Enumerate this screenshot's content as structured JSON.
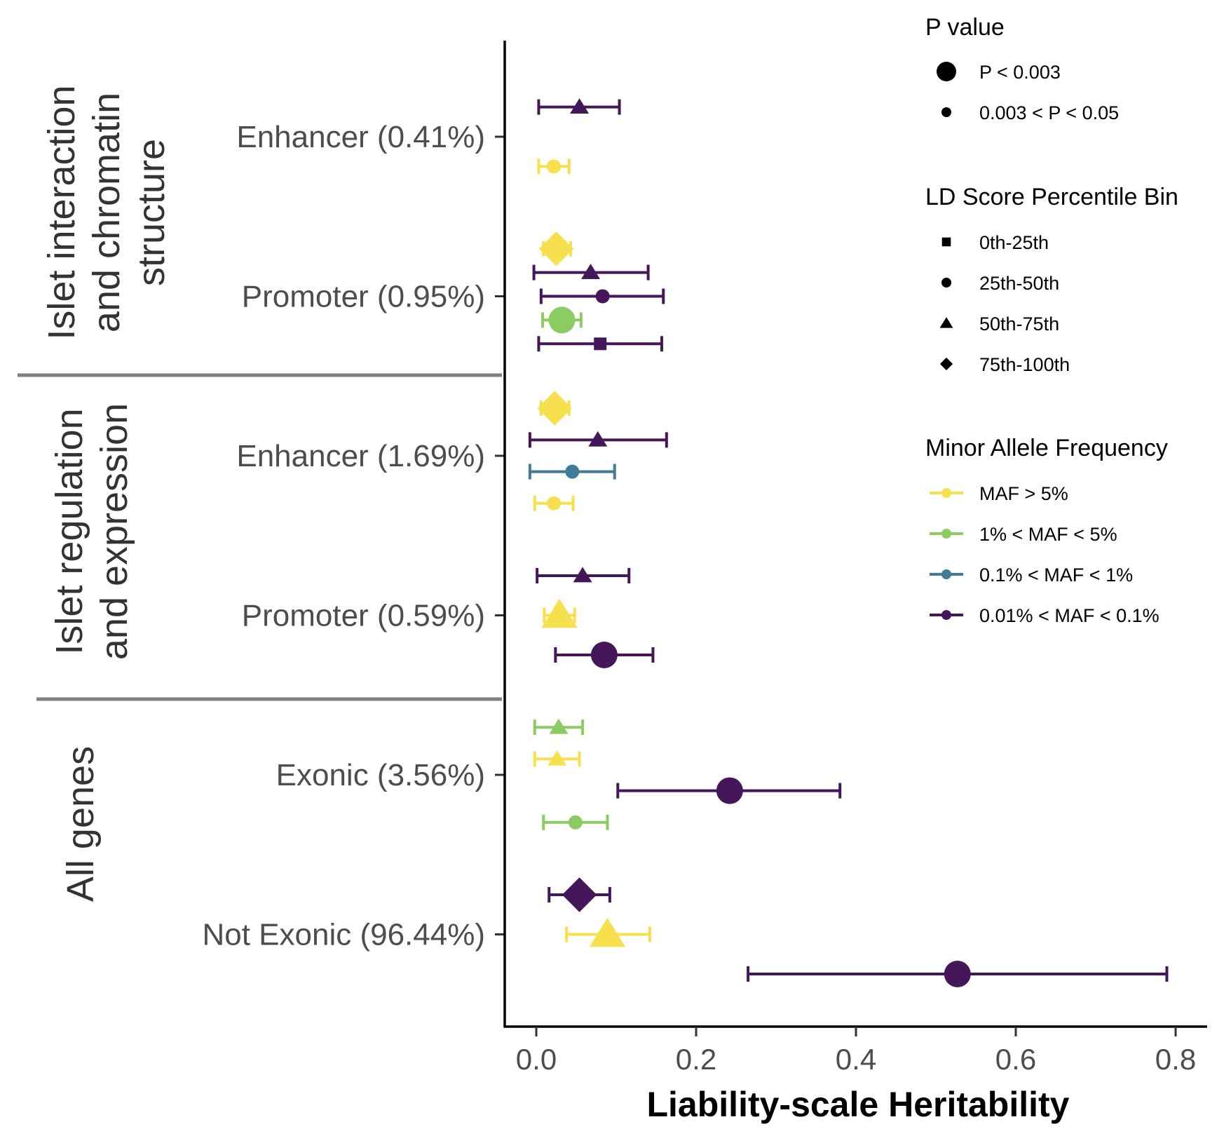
{
  "chart_data": {
    "type": "scatter",
    "subtype": "forest-plot",
    "xlabel": "Liability-scale Heritability",
    "xlim": [
      -0.02,
      0.83
    ],
    "xticks": [
      0.0,
      0.2,
      0.4,
      0.6,
      0.8
    ],
    "xtick_labels": [
      "0.0",
      "0.2",
      "0.4",
      "0.6",
      "0.8"
    ],
    "grid": false,
    "groups": [
      {
        "label_lines": [
          "Islet interaction",
          "and chromatin",
          "structure"
        ],
        "rows": [
          0,
          1
        ]
      },
      {
        "label_lines": [
          "Islet regulation",
          "and expression"
        ],
        "rows": [
          2,
          3
        ]
      },
      {
        "label_lines": [
          "All genes"
        ],
        "rows": [
          4,
          5
        ]
      }
    ],
    "rows": [
      "Enhancer (0.41%)",
      "Promoter (0.95%)",
      "Enhancer (1.69%)",
      "Promoter (0.59%)",
      "Exonic (3.56%)",
      "Not Exonic (96.44%)"
    ],
    "points": [
      {
        "row": 0,
        "offset": -0.375,
        "maf": "0.01% < MAF < 0.1%",
        "ld": "50th-75th",
        "p": "0.003 < P < 0.05",
        "est": 0.054,
        "lo": 0.003,
        "hi": 0.104
      },
      {
        "row": 0,
        "offset": 0.375,
        "maf": "MAF > 5%",
        "ld": "25th-50th",
        "p": "0.003 < P < 0.05",
        "est": 0.022,
        "lo": 0.003,
        "hi": 0.041
      },
      {
        "row": 1,
        "offset": -0.6,
        "maf": "MAF > 5%",
        "ld": "75th-100th",
        "p": "P < 0.003",
        "est": 0.025,
        "lo": 0.009,
        "hi": 0.043
      },
      {
        "row": 1,
        "offset": -0.3,
        "maf": "0.01% < MAF < 0.1%",
        "ld": "50th-75th",
        "p": "0.003 < P < 0.05",
        "est": 0.068,
        "lo": -0.003,
        "hi": 0.14
      },
      {
        "row": 1,
        "offset": 0.0,
        "maf": "0.01% < MAF < 0.1%",
        "ld": "25th-50th",
        "p": "0.003 < P < 0.05",
        "est": 0.083,
        "lo": 0.006,
        "hi": 0.159
      },
      {
        "row": 1,
        "offset": 0.3,
        "maf": "1% < MAF < 5%",
        "ld": "25th-50th",
        "p": "P < 0.003",
        "est": 0.032,
        "lo": 0.008,
        "hi": 0.056
      },
      {
        "row": 1,
        "offset": 0.6,
        "maf": "0.01% < MAF < 0.1%",
        "ld": "0th-25th",
        "p": "0.003 < P < 0.05",
        "est": 0.08,
        "lo": 0.003,
        "hi": 0.157
      },
      {
        "row": 2,
        "offset": -0.6,
        "maf": "MAF > 5%",
        "ld": "75th-100th",
        "p": "P < 0.003",
        "est": 0.023,
        "lo": 0.006,
        "hi": 0.041
      },
      {
        "row": 2,
        "offset": -0.2,
        "maf": "0.01% < MAF < 0.1%",
        "ld": "50th-75th",
        "p": "0.003 < P < 0.05",
        "est": 0.077,
        "lo": -0.008,
        "hi": 0.163
      },
      {
        "row": 2,
        "offset": 0.2,
        "maf": "0.1% < MAF < 1%",
        "ld": "25th-50th",
        "p": "0.003 < P < 0.05",
        "est": 0.045,
        "lo": -0.008,
        "hi": 0.098
      },
      {
        "row": 2,
        "offset": 0.6,
        "maf": "MAF > 5%",
        "ld": "25th-50th",
        "p": "0.003 < P < 0.05",
        "est": 0.022,
        "lo": -0.002,
        "hi": 0.046
      },
      {
        "row": 3,
        "offset": -0.5,
        "maf": "0.01% < MAF < 0.1%",
        "ld": "50th-75th",
        "p": "0.003 < P < 0.05",
        "est": 0.058,
        "lo": 0.001,
        "hi": 0.116
      },
      {
        "row": 3,
        "offset": 0.0,
        "maf": "MAF > 5%",
        "ld": "50th-75th",
        "p": "P < 0.003",
        "est": 0.029,
        "lo": 0.01,
        "hi": 0.048
      },
      {
        "row": 3,
        "offset": 0.5,
        "maf": "0.01% < MAF < 0.1%",
        "ld": "25th-50th",
        "p": "P < 0.003",
        "est": 0.085,
        "lo": 0.024,
        "hi": 0.146
      },
      {
        "row": 4,
        "offset": -0.6,
        "maf": "1% < MAF < 5%",
        "ld": "50th-75th",
        "p": "0.003 < P < 0.05",
        "est": 0.028,
        "lo": -0.002,
        "hi": 0.058
      },
      {
        "row": 4,
        "offset": -0.2,
        "maf": "MAF > 5%",
        "ld": "50th-75th",
        "p": "0.003 < P < 0.05",
        "est": 0.026,
        "lo": -0.002,
        "hi": 0.054
      },
      {
        "row": 4,
        "offset": 0.2,
        "maf": "0.01% < MAF < 0.1%",
        "ld": "25th-50th",
        "p": "P < 0.003",
        "est": 0.242,
        "lo": 0.102,
        "hi": 0.38
      },
      {
        "row": 4,
        "offset": 0.6,
        "maf": "1% < MAF < 5%",
        "ld": "25th-50th",
        "p": "0.003 < P < 0.05",
        "est": 0.049,
        "lo": 0.009,
        "hi": 0.089
      },
      {
        "row": 5,
        "offset": -0.5,
        "maf": "0.01% < MAF < 0.1%",
        "ld": "75th-100th",
        "p": "P < 0.003",
        "est": 0.054,
        "lo": 0.016,
        "hi": 0.092
      },
      {
        "row": 5,
        "offset": 0.0,
        "maf": "MAF > 5%",
        "ld": "50th-75th",
        "p": "P < 0.003",
        "est": 0.089,
        "lo": 0.038,
        "hi": 0.142
      },
      {
        "row": 5,
        "offset": 0.5,
        "maf": "0.01% < MAF < 0.1%",
        "ld": "25th-50th",
        "p": "P < 0.003",
        "est": 0.527,
        "lo": 0.265,
        "hi": 0.789
      }
    ],
    "legend": {
      "position": "right",
      "p_value": {
        "title": "P value",
        "items": [
          {
            "label": "P < 0.003",
            "key": "P < 0.003"
          },
          {
            "label": "0.003 < P < 0.05",
            "key": "0.003 < P < 0.05"
          }
        ]
      },
      "ld_bin": {
        "title": "LD Score Percentile Bin",
        "items": [
          {
            "label": "0th-25th",
            "shape": "square"
          },
          {
            "label": "25th-50th",
            "shape": "circle"
          },
          {
            "label": "50th-75th",
            "shape": "triangle"
          },
          {
            "label": "75th-100th",
            "shape": "diamond"
          }
        ]
      },
      "maf": {
        "title": "Minor Allele Frequency",
        "items": [
          {
            "label": "MAF > 5%",
            "color": "#f7e04e"
          },
          {
            "label": "1% < MAF < 5%",
            "color": "#8ccb61"
          },
          {
            "label": "0.1% < MAF < 1%",
            "color": "#3f7c95"
          },
          {
            "label": "0.01% < MAF < 0.1%",
            "color": "#45165a"
          }
        ]
      }
    }
  }
}
